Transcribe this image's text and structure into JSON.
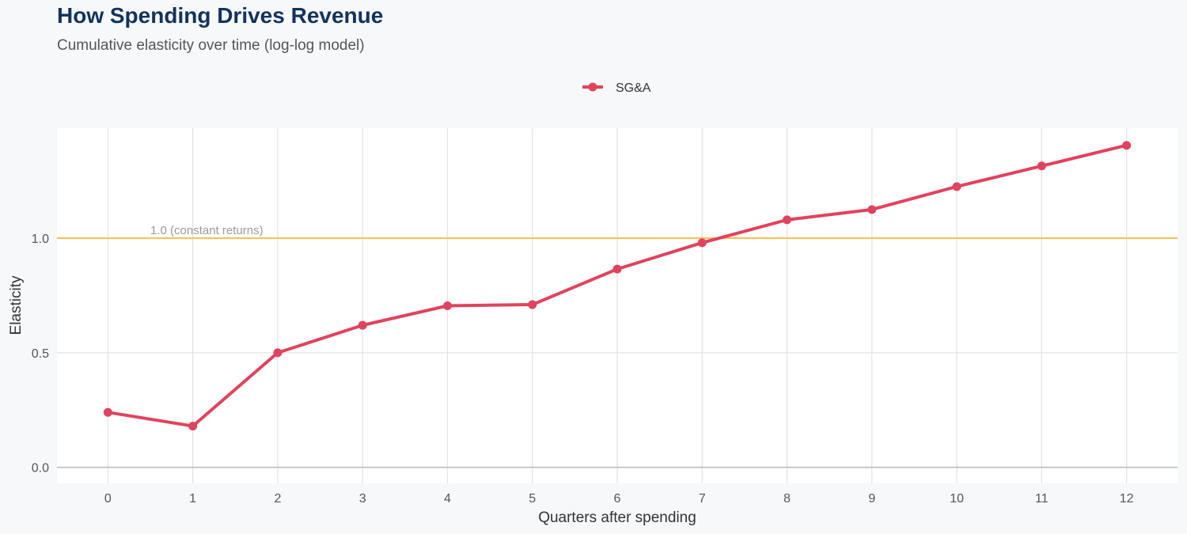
{
  "chart_data": {
    "type": "line",
    "title": "How Spending Drives Revenue",
    "subtitle": "Cumulative elasticity over time (log-log model)",
    "xlabel": "Quarters after spending",
    "ylabel": "Elasticity",
    "x": [
      0,
      1,
      2,
      3,
      4,
      5,
      6,
      7,
      8,
      9,
      10,
      11,
      12
    ],
    "series": [
      {
        "name": "SG&A",
        "color": "#e0435e",
        "values": [
          0.24,
          0.18,
          0.5,
          0.62,
          0.705,
          0.71,
          0.865,
          0.98,
          1.08,
          1.125,
          1.225,
          1.315,
          1.405
        ]
      }
    ],
    "reference_line": {
      "y": 1.0,
      "label": "1.0 (constant returns)",
      "color": "#ffc04d"
    },
    "xlim": [
      -0.6,
      12.6
    ],
    "ylim": [
      -0.07,
      1.48
    ],
    "xticks": [
      "0",
      "1",
      "2",
      "3",
      "4",
      "5",
      "6",
      "7",
      "8",
      "9",
      "10",
      "11",
      "12"
    ],
    "yticks": [
      "0.0",
      "0.5",
      "1.0"
    ],
    "ytick_values": [
      0.0,
      0.5,
      1.0
    ],
    "grid": true,
    "legend_position": "top-center"
  }
}
